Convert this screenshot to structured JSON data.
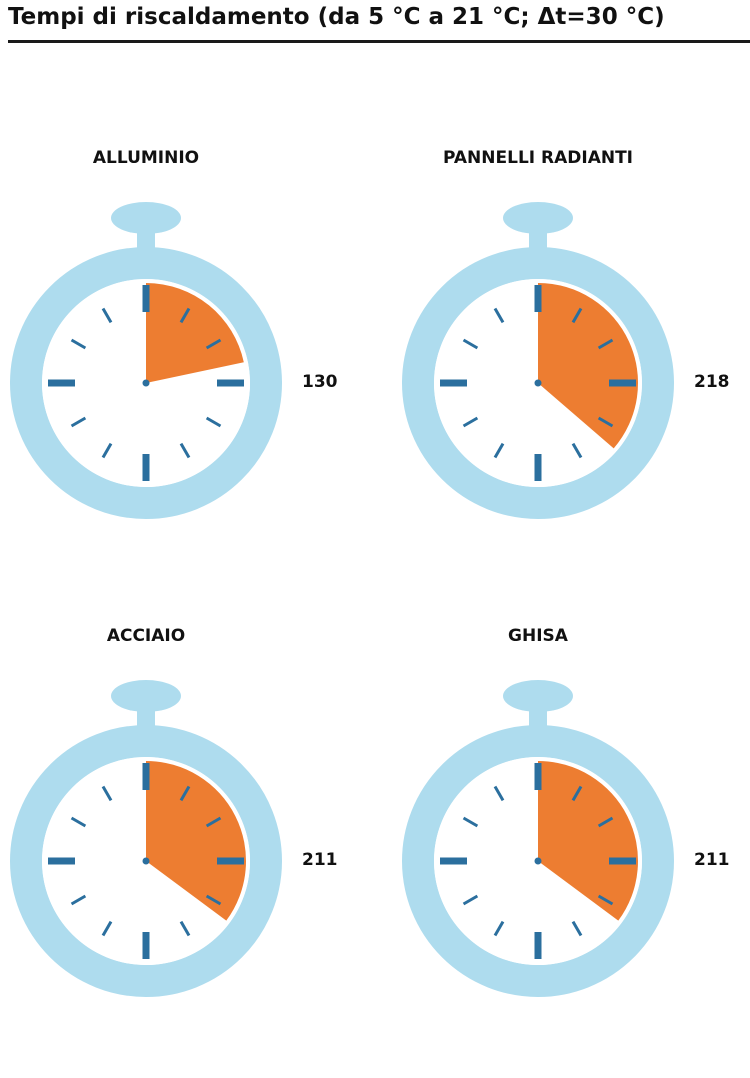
{
  "title": "Tempi di riscaldamento (da 5 °C a 21 °C; Δt=30 °C)",
  "colors": {
    "ring": "#aedcee",
    "face": "#ffffff",
    "ticks": "#2b6f9e",
    "fill": "#ed7d31",
    "text": "#111111"
  },
  "chart_data": {
    "type": "pie",
    "title": "Tempi di riscaldamento (da 5 °C a 21 °C; Δt=30 °C)",
    "dial_max": 600,
    "categories": [
      "ALLUMINIO",
      "PANNELLI RADIANTI",
      "ACCIAIO",
      "GHISA"
    ],
    "values": [
      130,
      218,
      211,
      211
    ]
  }
}
